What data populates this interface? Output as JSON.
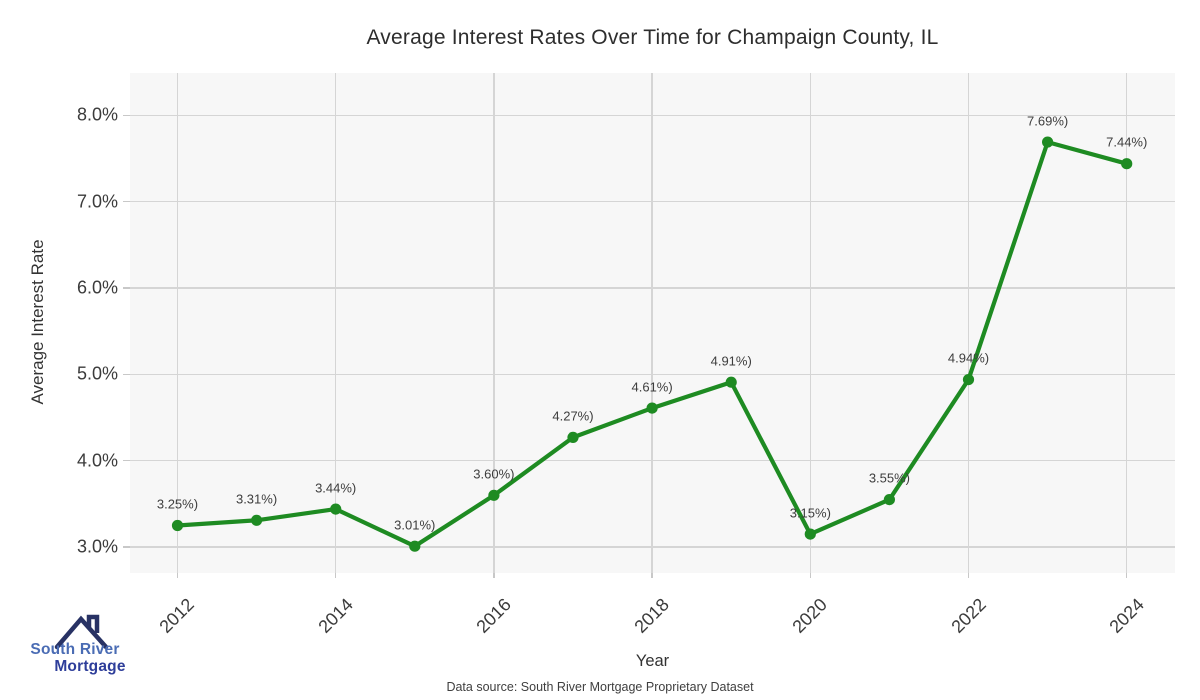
{
  "chart_data": {
    "type": "line",
    "title": "Average Interest Rates Over Time for Champaign County, IL",
    "xlabel": "Year",
    "ylabel": "Average Interest Rate",
    "x": [
      2012,
      2013,
      2014,
      2015,
      2016,
      2017,
      2018,
      2019,
      2020,
      2021,
      2022,
      2023,
      2024
    ],
    "values": [
      3.25,
      3.31,
      3.44,
      3.01,
      3.6,
      4.27,
      4.61,
      4.91,
      3.15,
      3.55,
      4.94,
      7.69,
      7.44
    ],
    "point_labels": [
      "3.25%)",
      "3.31%)",
      "3.44%)",
      "3.01%)",
      "3.60%)",
      "4.27%)",
      "4.61%)",
      "4.91%)",
      "3.15%)",
      "3.55%)",
      "4.94%)",
      "7.69%)",
      "7.44%)"
    ],
    "x_ticks": [
      {
        "value": 2012,
        "label": "2012"
      },
      {
        "value": 2014,
        "label": "2014"
      },
      {
        "value": 2016,
        "label": "2016"
      },
      {
        "value": 2018,
        "label": "2018"
      },
      {
        "value": 2020,
        "label": "2020"
      },
      {
        "value": 2022,
        "label": "2022"
      },
      {
        "value": 2024,
        "label": "2024"
      }
    ],
    "y_ticks": [
      {
        "value": 3.0,
        "label": "3.0%"
      },
      {
        "value": 4.0,
        "label": "4.0%"
      },
      {
        "value": 5.0,
        "label": "5.0%"
      },
      {
        "value": 6.0,
        "label": "6.0%"
      },
      {
        "value": 7.0,
        "label": "7.0%"
      },
      {
        "value": 8.0,
        "label": "8.0%"
      }
    ],
    "xlim": [
      2011.4,
      2024.61
    ],
    "ylim": [
      2.7,
      8.49
    ],
    "grid": true,
    "legend": "none",
    "colors": {
      "line": "#1e8b22",
      "plot_background": "#f7f7f7",
      "grid": "#d5d5d5",
      "tick_mark": "#c8c8c8"
    }
  },
  "caption": "Data source: South River Mortgage Proprietary Dataset",
  "logo": {
    "line1": "South River",
    "line2": "Mortgage",
    "color_line1": "#4a6cb4",
    "color_line2": "#2e3e9a",
    "roof_color": "#283264"
  }
}
